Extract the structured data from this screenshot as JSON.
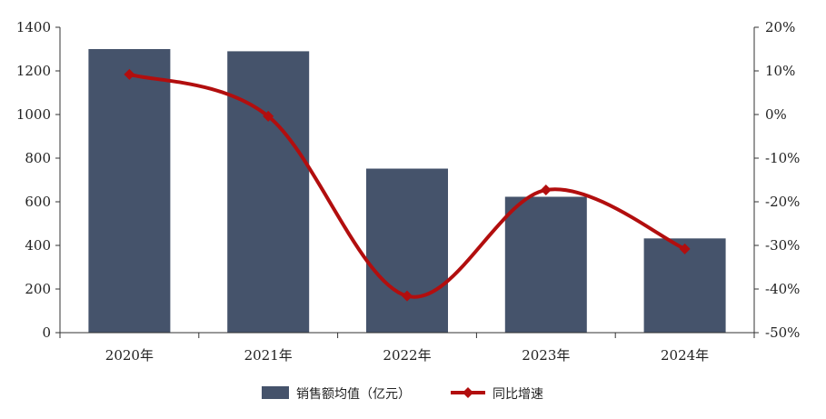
{
  "chart_data": {
    "type": "bar",
    "categories": [
      "2020年",
      "2021年",
      "2022年",
      "2023年",
      "2024年"
    ],
    "series": [
      {
        "name": "销售额均值（亿元）",
        "type": "bar",
        "axis": "left",
        "values": [
          1300,
          1290,
          752,
          623,
          432
        ]
      },
      {
        "name": "同比增速",
        "type": "line",
        "axis": "right",
        "values": [
          9.2,
          -0.4,
          -41.6,
          -17.3,
          -30.8
        ]
      }
    ],
    "left_axis": {
      "ylim": [
        0,
        1400
      ],
      "ticks": [
        0,
        200,
        400,
        600,
        800,
        1000,
        1200,
        1400
      ],
      "tick_labels": [
        "0",
        "200",
        "400",
        "600",
        "800",
        "1000",
        "1200",
        "1400"
      ]
    },
    "right_axis": {
      "ylim": [
        -50,
        20
      ],
      "ticks": [
        -50,
        -40,
        -30,
        -20,
        -10,
        0,
        10,
        20
      ],
      "tick_labels": [
        "-50%",
        "-40%",
        "-30%",
        "-20%",
        "-10%",
        "0%",
        "10%",
        "20%"
      ]
    },
    "grid": false,
    "legend": {
      "position": "bottom",
      "items": [
        "销售额均值（亿元）",
        "同比增速"
      ]
    },
    "colors": {
      "bar": "#45536b",
      "line": "#b20e0e",
      "axis": "#333333"
    }
  }
}
